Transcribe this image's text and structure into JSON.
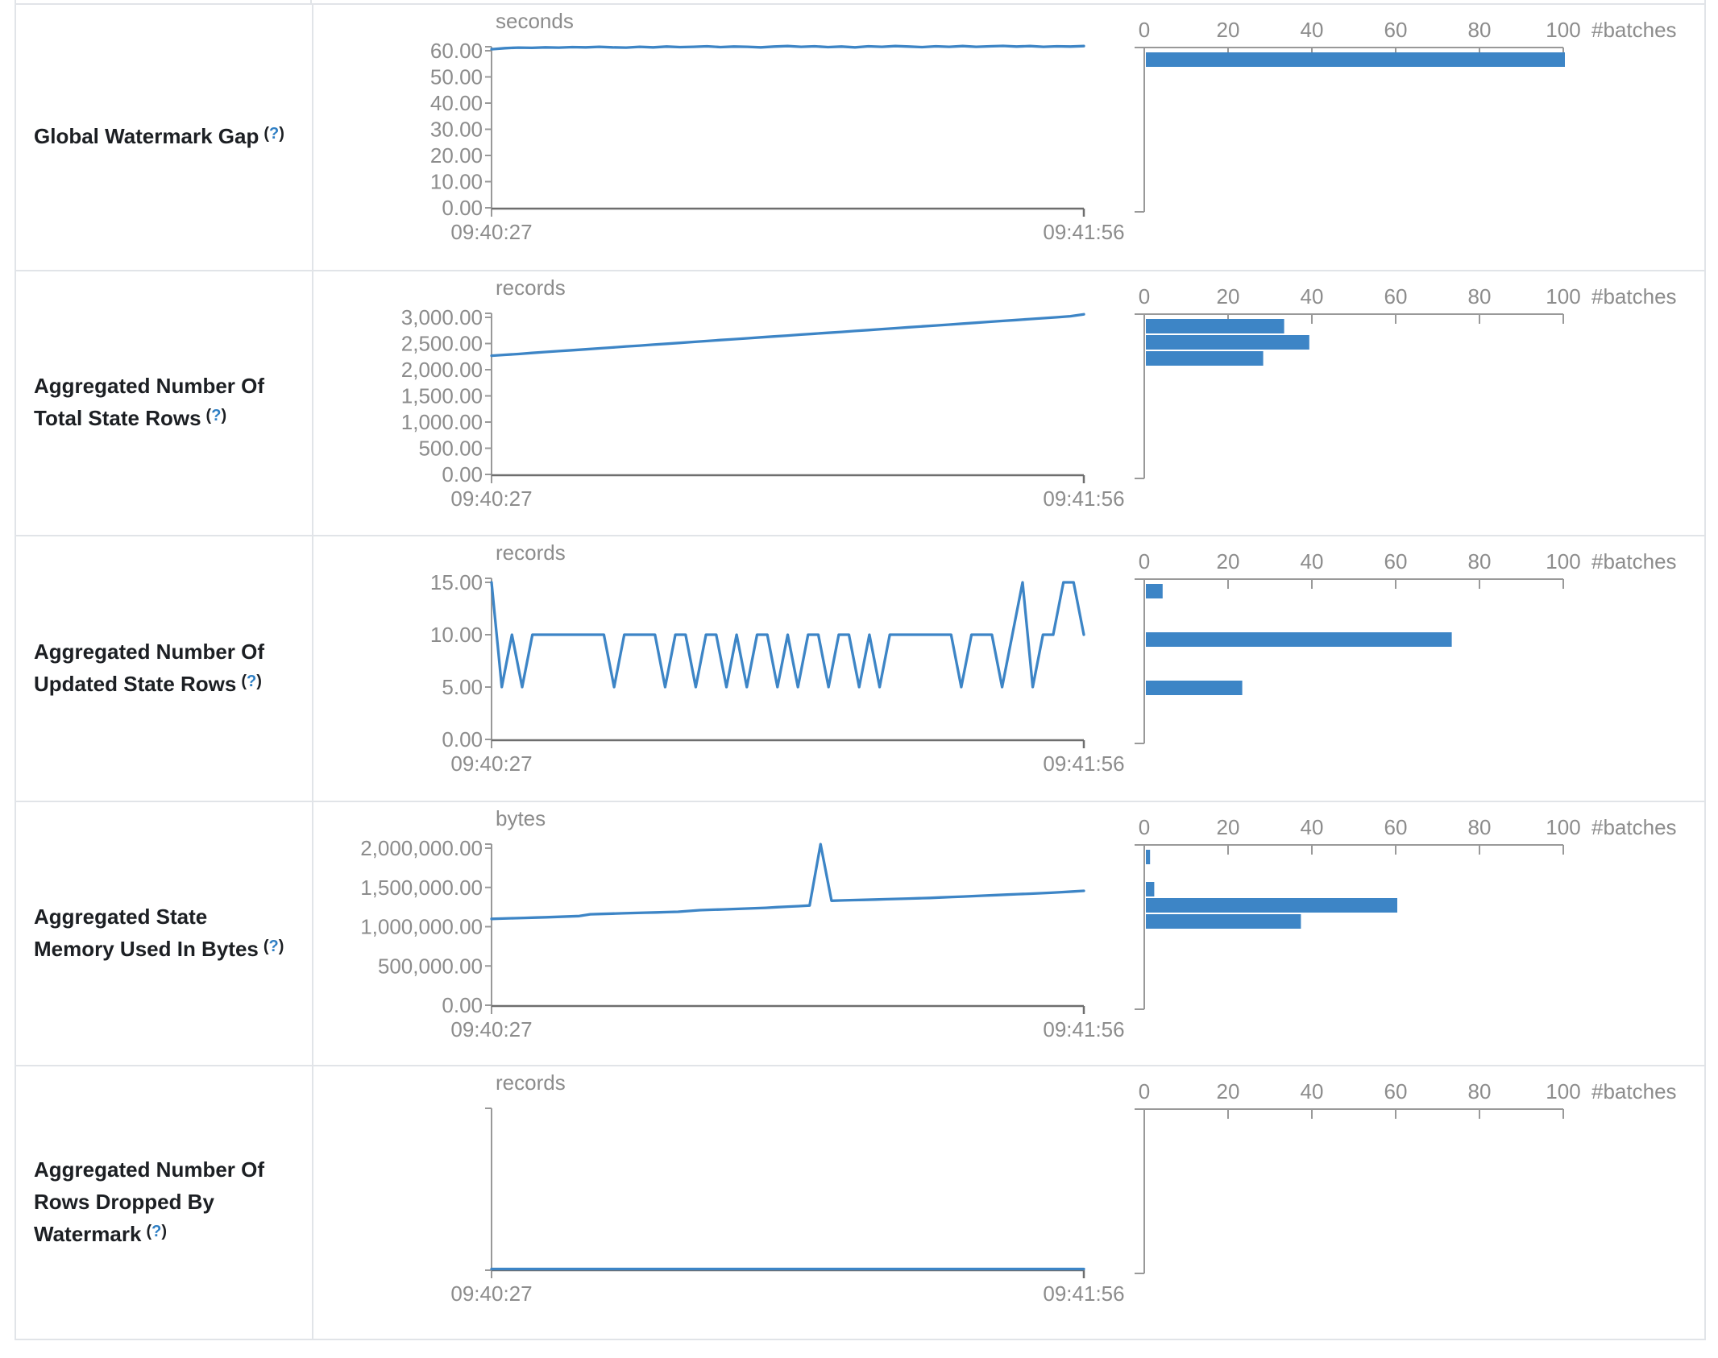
{
  "colors": {
    "line": "#3d85c6",
    "bar": "#3d85c6",
    "axis_gray": "#999999",
    "axis_dark": "#6e6e6e",
    "tick_text": "#8c8c8c",
    "border": "#e1e4e8",
    "label_text": "#1c1f23",
    "help_link": "#2f7fc4"
  },
  "shared": {
    "x_start": "09:40:27",
    "x_end": "09:41:56",
    "batches_label": "#batches",
    "hist_ticks": [
      "0",
      "20",
      "40",
      "60",
      "80",
      "100"
    ],
    "help_open": "(",
    "help_q": "?",
    "help_close": ")"
  },
  "chart_data": [
    {
      "label": "Global Watermark Gap",
      "timeline": {
        "type": "line",
        "unit": "seconds",
        "x_start": "09:40:27",
        "x_end": "09:41:56",
        "y_tick_max": 60,
        "y_ticks": [
          {
            "v": 60,
            "label": "60.00"
          },
          {
            "v": 50,
            "label": "50.00"
          },
          {
            "v": 40,
            "label": "40.00"
          },
          {
            "v": 30,
            "label": "30.00"
          },
          {
            "v": 20,
            "label": "20.00"
          },
          {
            "v": 10,
            "label": "10.00"
          },
          {
            "v": 0,
            "label": "0.00"
          }
        ],
        "values": [
          60.6,
          61.0,
          61.2,
          61.1,
          61.3,
          61.2,
          61.4,
          61.3,
          61.5,
          61.3,
          61.2,
          61.5,
          61.3,
          61.6,
          61.4,
          61.5,
          61.7,
          61.4,
          61.6,
          61.5,
          61.3,
          61.6,
          61.8,
          61.5,
          61.7,
          61.4,
          61.6,
          61.3,
          61.7,
          61.5,
          61.8,
          61.6,
          61.4,
          61.7,
          61.5,
          61.8,
          61.5,
          61.7,
          61.9,
          61.6,
          61.8,
          61.5,
          61.7,
          61.6,
          61.8
        ]
      },
      "histogram": {
        "type": "bar",
        "x_label": "#batches",
        "x_ticks": [
          0,
          20,
          40,
          60,
          80,
          100
        ],
        "bars": [
          {
            "slot": 0,
            "count": 100
          }
        ]
      }
    },
    {
      "label": "Aggregated Number Of Total State Rows",
      "timeline": {
        "type": "line",
        "unit": "records",
        "x_start": "09:40:27",
        "x_end": "09:41:56",
        "y_tick_max": 3000,
        "y_ticks": [
          {
            "v": 3000,
            "label": "3,000.00"
          },
          {
            "v": 2500,
            "label": "2,500.00"
          },
          {
            "v": 2000,
            "label": "2,000.00"
          },
          {
            "v": 1500,
            "label": "1,500.00"
          },
          {
            "v": 1000,
            "label": "1,000.00"
          },
          {
            "v": 500,
            "label": "500.00"
          },
          {
            "v": 0,
            "label": "0.00"
          }
        ],
        "values": [
          2268,
          2284,
          2300,
          2320,
          2338,
          2355,
          2372,
          2390,
          2408,
          2425,
          2444,
          2460,
          2478,
          2495,
          2512,
          2530,
          2548,
          2566,
          2583,
          2600,
          2618,
          2635,
          2652,
          2670,
          2688,
          2705,
          2722,
          2740,
          2757,
          2775,
          2792,
          2810,
          2827,
          2845,
          2862,
          2880,
          2897,
          2915,
          2932,
          2950,
          2967,
          2985,
          3002,
          3022,
          3058
        ]
      },
      "histogram": {
        "type": "bar",
        "x_label": "#batches",
        "x_ticks": [
          0,
          20,
          40,
          60,
          80,
          100
        ],
        "bars": [
          {
            "slot": 0,
            "count": 33
          },
          {
            "slot": 1,
            "count": 39
          },
          {
            "slot": 2,
            "count": 28
          }
        ]
      }
    },
    {
      "label": "Aggregated Number Of Updated State Rows",
      "timeline": {
        "type": "line",
        "unit": "records",
        "x_start": "09:40:27",
        "x_end": "09:41:56",
        "y_tick_max": 15,
        "y_ticks": [
          {
            "v": 15,
            "label": "15.00"
          },
          {
            "v": 10,
            "label": "10.00"
          },
          {
            "v": 5,
            "label": "5.00"
          },
          {
            "v": 0,
            "label": "0.00"
          }
        ],
        "values": [
          15,
          5,
          10,
          5,
          10,
          10,
          10,
          10,
          10,
          10,
          10,
          10,
          5,
          10,
          10,
          10,
          10,
          5,
          10,
          10,
          5,
          10,
          10,
          5,
          10,
          5,
          10,
          10,
          5,
          10,
          5,
          10,
          10,
          5,
          10,
          10,
          5,
          10,
          5,
          10,
          10,
          10,
          10,
          10,
          10,
          10,
          5,
          10,
          10,
          10,
          5,
          10,
          15,
          5,
          10,
          10,
          15,
          15,
          10
        ]
      },
      "histogram": {
        "type": "bar",
        "x_label": "#batches",
        "x_ticks": [
          0,
          20,
          40,
          60,
          80,
          100
        ],
        "bars": [
          {
            "slot": 0,
            "count": 4
          },
          {
            "slot": 3,
            "count": 73
          },
          {
            "slot": 6,
            "count": 23
          }
        ]
      }
    },
    {
      "label": "Aggregated State Memory Used In Bytes",
      "timeline": {
        "type": "line",
        "unit": "bytes",
        "x_start": "09:40:27",
        "x_end": "09:41:56",
        "y_tick_max": 2000000,
        "y_ticks": [
          {
            "v": 2000000,
            "label": "2,000,000.00"
          },
          {
            "v": 1500000,
            "label": "1,500,000.00"
          },
          {
            "v": 1000000,
            "label": "1,000,000.00"
          },
          {
            "v": 500000,
            "label": "500,000.00"
          },
          {
            "v": 0,
            "label": "0.00"
          }
        ],
        "values": [
          1100000,
          1104000,
          1108000,
          1112000,
          1116000,
          1120000,
          1125000,
          1130000,
          1135000,
          1158000,
          1162000,
          1166000,
          1170000,
          1174000,
          1178000,
          1182000,
          1186000,
          1190000,
          1200000,
          1210000,
          1215000,
          1220000,
          1225000,
          1230000,
          1235000,
          1240000,
          1248000,
          1255000,
          1262000,
          1270000,
          2050000,
          1330000,
          1334000,
          1338000,
          1342000,
          1346000,
          1350000,
          1354000,
          1358000,
          1362000,
          1366000,
          1372000,
          1378000,
          1384000,
          1390000,
          1396000,
          1402000,
          1408000,
          1414000,
          1420000,
          1426000,
          1432000,
          1440000,
          1448000,
          1456000
        ]
      },
      "histogram": {
        "type": "bar",
        "x_label": "#batches",
        "x_ticks": [
          0,
          20,
          40,
          60,
          80,
          100
        ],
        "bars": [
          {
            "slot": 0,
            "count": 1
          },
          {
            "slot": 2,
            "count": 2
          },
          {
            "slot": 3,
            "count": 60
          },
          {
            "slot": 4,
            "count": 37
          }
        ]
      }
    },
    {
      "label": "Aggregated Number Of Rows Dropped By Watermark",
      "timeline": {
        "type": "line",
        "unit": "records",
        "x_start": "09:40:27",
        "x_end": "09:41:56",
        "y_tick_max": null,
        "y_ticks": [],
        "values": [
          0,
          0,
          0,
          0,
          0,
          0,
          0,
          0,
          0,
          0
        ]
      },
      "histogram": {
        "type": "bar",
        "x_label": "#batches",
        "x_ticks": [
          0,
          20,
          40,
          60,
          80,
          100
        ],
        "bars": []
      }
    }
  ]
}
